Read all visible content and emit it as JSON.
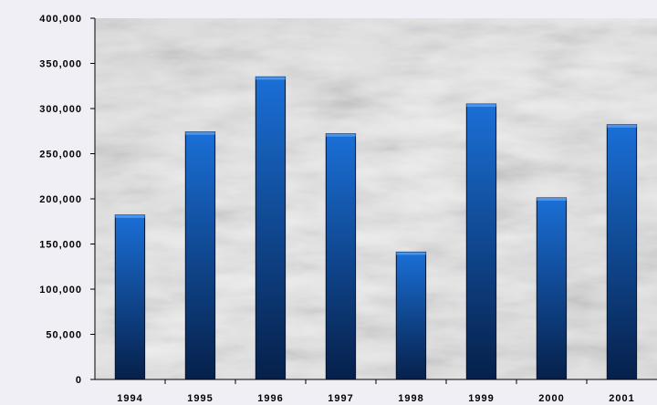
{
  "chart_data": {
    "type": "bar",
    "categories": [
      "1994",
      "1995",
      "1996",
      "1997",
      "1998",
      "1999",
      "2000",
      "2001"
    ],
    "values": [
      182000,
      274000,
      335000,
      272000,
      141000,
      305000,
      201000,
      282000
    ],
    "ylim": [
      0,
      400000
    ],
    "yticks": [
      0,
      50000,
      100000,
      150000,
      200000,
      250000,
      300000,
      350000,
      400000
    ],
    "ytick_labels": [
      "0",
      "50,000",
      "100,000",
      "150,000",
      "200,000",
      "250,000",
      "300,000",
      "350,000",
      "400,000"
    ],
    "grid": false,
    "legend": "none",
    "title": "",
    "xlabel": "",
    "ylabel": "",
    "colors": {
      "bar_top": "#1a6fd6",
      "bar_bottom": "#06204a",
      "plot_background": "#dcdcdc",
      "axis": "#000000"
    }
  }
}
